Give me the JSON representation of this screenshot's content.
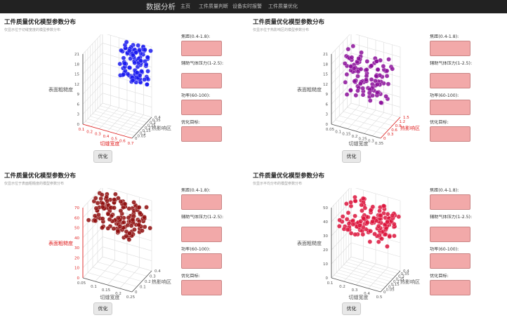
{
  "nav": {
    "brand": "数据分析",
    "items": [
      "主页",
      "工件质量判断",
      "设备实时报警",
      "工件质量优化"
    ]
  },
  "panels": [
    {
      "title": "工件质量优化模型参数分布",
      "subtitle": "仅显示位于切缝宽度的模型参数分布",
      "form": {
        "labels": [
          "焦距(0.4-1.8):",
          "辅助气体压力(1-2.5):",
          "功率(60-100):",
          "优化目标:"
        ],
        "values": [
          "",
          "",
          "",
          ""
        ]
      },
      "button_label": "优化",
      "chart_data": {
        "type": "scatter",
        "series_color": "#1a1aee",
        "highlight_axis": "x",
        "x": {
          "label": "切缝宽度",
          "ticks": [
            "0.1",
            "0.2",
            "0.3",
            "0.4",
            "0.5",
            "0.6",
            "0.7"
          ],
          "range": [
            0.1,
            0.7
          ]
        },
        "y": {
          "label": "热影响区",
          "ticks": [
            "0",
            "0.05",
            "0.1",
            "0.15",
            "0.2",
            "0.25",
            "0.3",
            "0.35",
            "0.4"
          ],
          "range": [
            0,
            0.4
          ]
        },
        "z": {
          "label": "表面粗糙度",
          "ticks": [
            "0",
            "3",
            "6",
            "9",
            "12",
            "15",
            "18",
            "21"
          ],
          "range": [
            0,
            21
          ]
        },
        "point_ranges": {
          "x": [
            0.35,
            0.7
          ],
          "y": [
            0.3,
            0.4
          ],
          "z": [
            10,
            21
          ]
        },
        "point_count": 110
      }
    },
    {
      "title": "工件质量优化模型参数分布",
      "subtitle": "仅显示位于热影响区的模型参数分布",
      "form": {
        "labels": [
          "焦距(0.4-1.8):",
          "辅助气体压力(1-2.5):",
          "功率(60-100):",
          "优化目标:"
        ],
        "values": [
          "",
          "",
          "",
          ""
        ]
      },
      "button_label": "优化",
      "chart_data": {
        "type": "scatter",
        "series_color": "#8b0f9a",
        "highlight_axis": "y",
        "x": {
          "label": "切缝宽度",
          "ticks": [
            "0.05",
            "0.1",
            "0.15",
            "0.2",
            "0.25",
            "0.3",
            "0.35"
          ],
          "range": [
            0.05,
            0.35
          ]
        },
        "y": {
          "label": "热影响区",
          "ticks": [
            "0",
            "0.3",
            "0.6",
            "0.9",
            "1.2",
            "1.5"
          ],
          "range": [
            0,
            1.5
          ]
        },
        "z": {
          "label": "表面粗糙度",
          "ticks": [
            "0",
            "3",
            "6",
            "9",
            "12",
            "15",
            "18",
            "21"
          ],
          "range": [
            0,
            21
          ]
        },
        "point_ranges": {
          "x": [
            0.1,
            0.35
          ],
          "y": [
            0.2,
            1.0
          ],
          "z": [
            8,
            21
          ]
        },
        "point_count": 110
      }
    },
    {
      "title": "工件质量优化模型参数分布",
      "subtitle": "仅显示位于表面粗糙度的模型参数分布",
      "form": {
        "labels": [
          "焦距(0.4-1.8):",
          "辅助气体压力(1-2.5):",
          "功率(60-100):",
          "优化目标:"
        ],
        "values": [
          "",
          "",
          "",
          ""
        ]
      },
      "button_label": "优化",
      "chart_data": {
        "type": "scatter",
        "series_color": "#8e0d0d",
        "highlight_axis": "z",
        "x": {
          "label": "切缝宽度",
          "ticks": [
            "0.05",
            "0.1",
            "0.15",
            "0.2",
            "0.25"
          ],
          "range": [
            0.05,
            0.25
          ]
        },
        "y": {
          "label": "热影响区",
          "ticks": [
            "0",
            "0.1",
            "0.2",
            "0.3",
            "0.4"
          ],
          "range": [
            0,
            0.4
          ]
        },
        "z": {
          "label": "表面粗糙度",
          "ticks": [
            "0",
            "10",
            "20",
            "30",
            "40",
            "50",
            "60",
            "70"
          ],
          "range": [
            0,
            70
          ]
        },
        "point_ranges": {
          "x": [
            0.05,
            0.25
          ],
          "y": [
            0.1,
            0.4
          ],
          "z": [
            40,
            70
          ]
        },
        "point_count": 140
      }
    },
    {
      "title": "工件质量优化模型参数分布",
      "subtitle": "仅显示平均分布的模型参数分布",
      "form": {
        "labels": [
          "焦距(0.4-1.8):",
          "辅助气体压力(1-2.5):",
          "功率(60-100):",
          "优化目标:"
        ],
        "values": [
          "",
          "",
          "",
          ""
        ]
      },
      "button_label": "优化",
      "chart_data": {
        "type": "scatter",
        "series_color": "#dc143c",
        "highlight_axis": "none",
        "x": {
          "label": "切缝宽度",
          "ticks": [
            "0.1",
            "0.2",
            "0.3",
            "0.4",
            "0.5"
          ],
          "range": [
            0.05,
            0.5
          ]
        },
        "y": {
          "label": "热影响区",
          "ticks": [
            "0",
            "0.05",
            "0.1",
            "0.15",
            "0.2",
            "0.25",
            "0.3",
            "0.35",
            "0.4"
          ],
          "range": [
            0,
            0.4
          ]
        },
        "z": {
          "label": "表面粗糙度",
          "ticks": [
            "0",
            "10",
            "20",
            "30",
            "40",
            "50"
          ],
          "range": [
            0,
            50
          ]
        },
        "point_ranges": {
          "x": [
            0.05,
            0.5
          ],
          "y": [
            0.1,
            0.4
          ],
          "z": [
            25,
            45
          ]
        },
        "point_count": 130
      }
    }
  ]
}
